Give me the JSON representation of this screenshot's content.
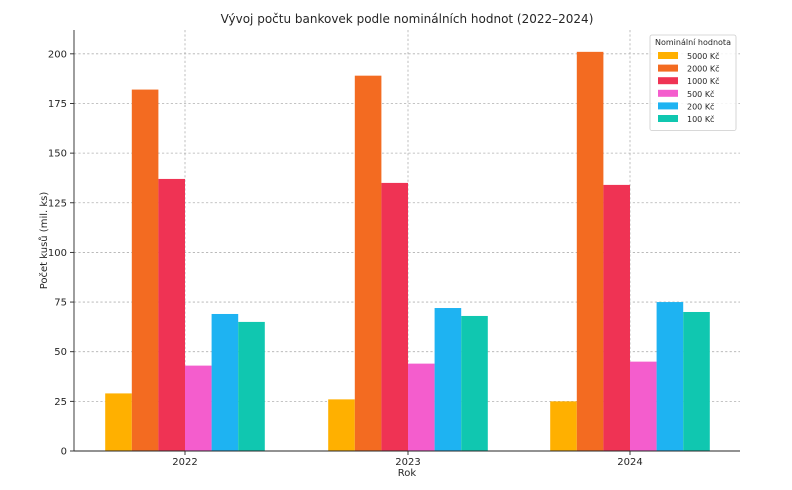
{
  "chart_data": {
    "type": "bar",
    "title": "Vývoj počtu bankovek podle nominálních hodnot (2022–2024)",
    "xlabel": "Rok",
    "ylabel": "Počet kusů (mil. ks)",
    "categories": [
      "2022",
      "2023",
      "2024"
    ],
    "ylim": [
      0,
      212
    ],
    "yticks": [
      0,
      25,
      50,
      75,
      100,
      125,
      150,
      175,
      200
    ],
    "grid": true,
    "legend": {
      "title": "Nominální hodnota",
      "placement": "top-right"
    },
    "series": [
      {
        "name": "5000 Kč",
        "color": "#FFB000",
        "values": [
          29,
          26,
          25
        ]
      },
      {
        "name": "2000 Kč",
        "color": "#F36B21",
        "values": [
          182,
          189,
          201
        ]
      },
      {
        "name": "1000 Kč",
        "color": "#EF3354",
        "values": [
          137,
          135,
          134
        ]
      },
      {
        "name": "500 Kč",
        "color": "#F45DCD",
        "values": [
          43,
          44,
          45
        ]
      },
      {
        "name": "200 Kč",
        "color": "#1EB3F2",
        "values": [
          69,
          72,
          75
        ]
      },
      {
        "name": "100 Kč",
        "color": "#10C7B0",
        "values": [
          65,
          68,
          70
        ]
      }
    ]
  }
}
